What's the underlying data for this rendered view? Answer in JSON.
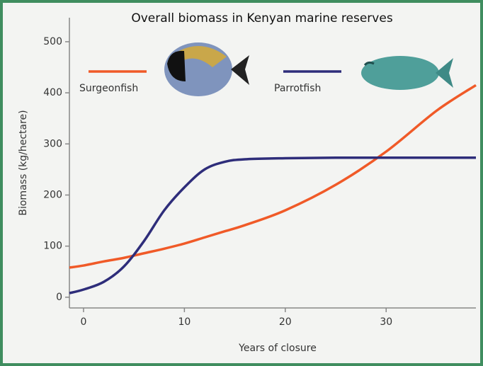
{
  "chart_data": {
    "type": "line",
    "title": "Overall biomass in Kenyan marine reserves",
    "x_label": "Years of closure",
    "y_label": "Biomass (kg/hectare)",
    "x": [
      -1.4,
      0,
      2,
      4,
      6,
      8,
      10,
      12,
      14,
      16,
      20,
      25,
      30,
      35,
      38.9
    ],
    "series": [
      {
        "name": "Surgeonfish",
        "color": "#f05a28",
        "values": [
          58,
          62,
          70,
          77,
          86,
          95,
          105,
          117,
          129,
          141,
          170,
          220,
          285,
          365,
          415
        ]
      },
      {
        "name": "Parrotfish",
        "color": "#2e2d7a",
        "values": [
          8,
          15,
          30,
          60,
          110,
          170,
          215,
          250,
          265,
          270,
          272,
          273,
          273,
          273,
          273
        ]
      }
    ],
    "xlim": [
      -1.4,
      38.9
    ],
    "ylim": [
      -21,
      547
    ],
    "xticks": [
      0,
      10,
      20,
      30
    ],
    "yticks": [
      0,
      100,
      200,
      300,
      400,
      500
    ]
  }
}
